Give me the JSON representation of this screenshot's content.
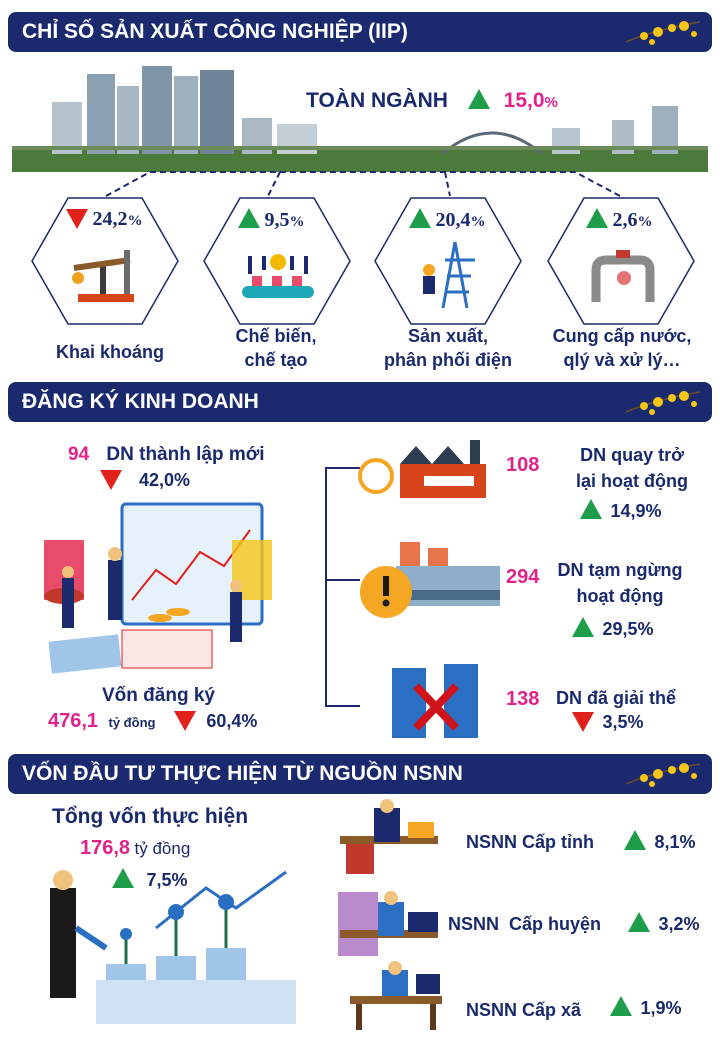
{
  "colors": {
    "banner": "#1b2a6e",
    "accent_pink": "#e0228a",
    "up_green": "#1e9e4a",
    "down_red": "#e0211c",
    "text_navy": "#1a2a6c"
  },
  "iip": {
    "title": "CHỈ SỐ SẢN XUẤT CÔNG NGHIỆP (IIP)",
    "total_label": "TOÀN NGÀNH",
    "total_value": "15,0",
    "total_unit": "%",
    "total_trend": "up",
    "sectors": [
      {
        "name_line1": "Khai khoáng",
        "name_line2": "",
        "value": "24,2",
        "unit": "%",
        "trend": "down",
        "icon": "oil-pump-icon"
      },
      {
        "name_line1": "Chế biến,",
        "name_line2": "chế tạo",
        "value": "9,5",
        "unit": "%",
        "trend": "up",
        "icon": "conveyor-icon"
      },
      {
        "name_line1": "Sản xuất,",
        "name_line2": "phân phối điện",
        "value": "20,4",
        "unit": "%",
        "trend": "up",
        "icon": "power-tower-icon"
      },
      {
        "name_line1": "Cung cấp nước,",
        "name_line2": "qlý  và xử lý…",
        "value": "2,6",
        "unit": "%",
        "trend": "up",
        "icon": "water-pipe-icon"
      }
    ]
  },
  "business": {
    "title": "ĐĂNG KÝ KINH DOANH",
    "new": {
      "count": "94",
      "label": "DN thành lập mới",
      "change": "42,0%",
      "trend": "down"
    },
    "capital": {
      "label": "Vốn đăng ký",
      "value": "476,1",
      "unit": "tỷ đồng",
      "change": "60,4%",
      "trend": "down"
    },
    "returned": {
      "count": "108",
      "label_line1": "DN quay trở",
      "label_line2": "lại hoạt động",
      "change": "14,9%",
      "trend": "up"
    },
    "suspended": {
      "count": "294",
      "label_line1": "DN tạm ngừng",
      "label_line2": "hoạt động",
      "change": "29,5%",
      "trend": "up"
    },
    "dissolved": {
      "count": "138",
      "label_line1": "DN đã giải thể",
      "change": "3,5%",
      "trend": "down"
    }
  },
  "investment": {
    "title": "VỐN ĐẦU TƯ THỰC HIỆN TỪ NGUỒN NSNN",
    "total_label": "Tổng vốn thực hiện",
    "total_value": "176,8",
    "total_unit": "tỷ đồng",
    "total_change": "7,5%",
    "levels": [
      {
        "label": "NSNN Cấp tỉnh",
        "change": "8,1%",
        "trend": "up"
      },
      {
        "label": "NSNN  Cấp huyện",
        "change": "3,2%",
        "trend": "up"
      },
      {
        "label": "NSNN Cấp xã",
        "change": "1,9%",
        "trend": "up"
      }
    ]
  }
}
